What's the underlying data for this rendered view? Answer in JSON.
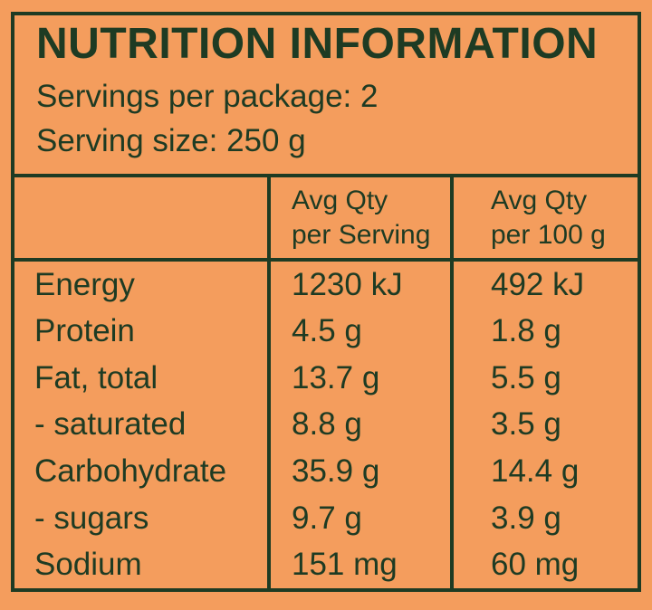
{
  "colors": {
    "background": "#F49D5D",
    "ink": "#1E3B23"
  },
  "title": "NUTRITION INFORMATION",
  "servings_line": "Servings per package: 2",
  "serving_size_line": "Serving size: 250 g",
  "table": {
    "columns": [
      {
        "line1": "",
        "line2": ""
      },
      {
        "line1": "Avg Qty",
        "line2": "per Serving"
      },
      {
        "line1": "Avg Qty",
        "line2": "per 100 g"
      }
    ],
    "rows": [
      {
        "nutrient": "Energy",
        "per_serving": "1230 kJ",
        "per_100g": "492 kJ"
      },
      {
        "nutrient": "Protein",
        "per_serving": "4.5 g",
        "per_100g": "1.8 g"
      },
      {
        "nutrient": "Fat, total",
        "per_serving": "13.7 g",
        "per_100g": "5.5 g"
      },
      {
        "nutrient": "- saturated",
        "per_serving": "8.8 g",
        "per_100g": "3.5 g"
      },
      {
        "nutrient": "Carbohydrate",
        "per_serving": "35.9 g",
        "per_100g": "14.4 g"
      },
      {
        "nutrient": "- sugars",
        "per_serving": "9.7 g",
        "per_100g": "3.9 g"
      },
      {
        "nutrient": "Sodium",
        "per_serving": "151 mg",
        "per_100g": "60 mg"
      }
    ]
  }
}
